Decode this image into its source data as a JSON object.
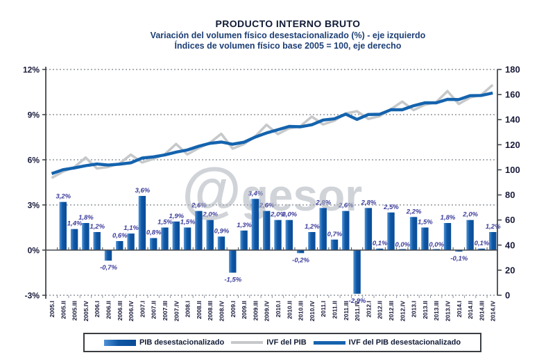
{
  "header": {
    "title": "PRODUCTO INTERNO BRUTO",
    "subtitle1": "Variación del volumen físico desestacionalizado (%) - eje izquierdo",
    "subtitle2": "Índices de volumen físico base 2005 = 100, eje derecho"
  },
  "watermark": {
    "at": "@",
    "rest": "gesor"
  },
  "legend": [
    {
      "label": "PIB desestacionalizado",
      "swatch": "bar"
    },
    {
      "label": "IVF del PIB",
      "swatch": "line-grey"
    },
    {
      "label": "IVF del PIB desestacionalizado",
      "swatch": "line-blue"
    }
  ],
  "colors": {
    "bar": "#0e56a4",
    "bar_light": "#4f93d6",
    "line_blue": "#1463ae",
    "line_grey": "#c6c8ca",
    "value_label": "#3b3b9b",
    "axis_text": "#181a3a",
    "grid": "#91959b",
    "axis_line": "#44474c",
    "title": "#111b36",
    "subtitle": "#1c3e74",
    "watermark": "#aab0ba"
  },
  "chart_data": {
    "type": "bar+line",
    "title": "PRODUCTO INTERNO BRUTO",
    "categories": [
      "2005.I",
      "2005.II",
      "2005.III",
      "2005.IV",
      "2006.I",
      "2006.II",
      "2006.III",
      "2006.IV",
      "2007.I",
      "2007.II",
      "2007.III",
      "2007.IV",
      "2008.I",
      "2008.II",
      "2008.III",
      "2008.IV",
      "2009.I",
      "2009.II",
      "2009.III",
      "2009.IV",
      "2010.I",
      "2010.II",
      "2010.III",
      "2010.IV",
      "2011.I",
      "2011.II",
      "2011.III",
      "2011.IV",
      "2012.I",
      "2012.II",
      "2012.III",
      "2012.IV",
      "2013.I",
      "2013.II",
      "2013.III",
      "2013.IV",
      "2014.I",
      "2014.II",
      "2014.III",
      "2014.IV"
    ],
    "series": [
      {
        "name": "PIB desestacionalizado",
        "type": "bar",
        "axis": "left",
        "unit": "%",
        "values": [
          null,
          3.2,
          1.4,
          1.8,
          1.2,
          -0.7,
          0.6,
          1.1,
          3.6,
          0.8,
          1.5,
          1.9,
          1.5,
          2.6,
          2.0,
          0.9,
          -1.5,
          1.3,
          3.4,
          2.6,
          2.0,
          2.0,
          -0.2,
          1.2,
          2.8,
          0.7,
          2.6,
          -2.9,
          2.8,
          0.1,
          2.5,
          0.0,
          2.2,
          1.5,
          0.0,
          1.8,
          -0.1,
          2.0,
          0.1,
          1.2
        ]
      },
      {
        "name": "IVF del PIB",
        "type": "line",
        "axis": "right",
        "values": [
          93.5,
          98.6,
          102.0,
          109.8,
          101.1,
          102.3,
          105.0,
          112.1,
          105.9,
          108.8,
          112.4,
          120.6,
          112.3,
          117.3,
          121.6,
          128.7,
          116.9,
          120.5,
          126.6,
          135.9,
          128.5,
          133.1,
          134.8,
          142.4,
          136.2,
          139.2,
          144.9,
          146.7,
          140.6,
          142.8,
          148.4,
          154.4,
          147.6,
          151.9,
          153.9,
          162.7,
          152.5,
          157.6,
          159.8,
          167.7
        ]
      },
      {
        "name": "IVF del PIB desestacionalizado",
        "type": "line",
        "axis": "right",
        "values": [
          97.0,
          100.1,
          101.5,
          103.3,
          104.6,
          103.8,
          104.5,
          105.6,
          109.4,
          110.3,
          111.9,
          114.1,
          115.8,
          118.8,
          121.1,
          122.2,
          120.4,
          122.0,
          126.1,
          129.4,
          132.0,
          134.6,
          134.3,
          135.9,
          139.7,
          140.7,
          144.4,
          140.2,
          144.1,
          144.3,
          147.9,
          147.9,
          151.1,
          153.4,
          153.4,
          156.2,
          156.0,
          159.1,
          159.3,
          161.2
        ]
      }
    ],
    "left_axis": {
      "labels": [
        "12%",
        "9%",
        "6%",
        "3%",
        "0%",
        "-3%"
      ],
      "values": [
        12,
        9,
        6,
        3,
        0,
        -3
      ],
      "min": -3,
      "max": 12,
      "gridline_values": [
        12,
        9,
        6,
        3,
        -3
      ]
    },
    "right_axis": {
      "labels": [
        "180",
        "160",
        "140",
        "120",
        "100",
        "80",
        "60",
        "40",
        "20",
        "0"
      ],
      "values": [
        180,
        160,
        140,
        120,
        100,
        80,
        60,
        40,
        20,
        0
      ],
      "min": 0,
      "max": 180
    },
    "grid": "horizontal dashed at left-axis major ticks, solid zero line",
    "legend_position": "bottom"
  }
}
